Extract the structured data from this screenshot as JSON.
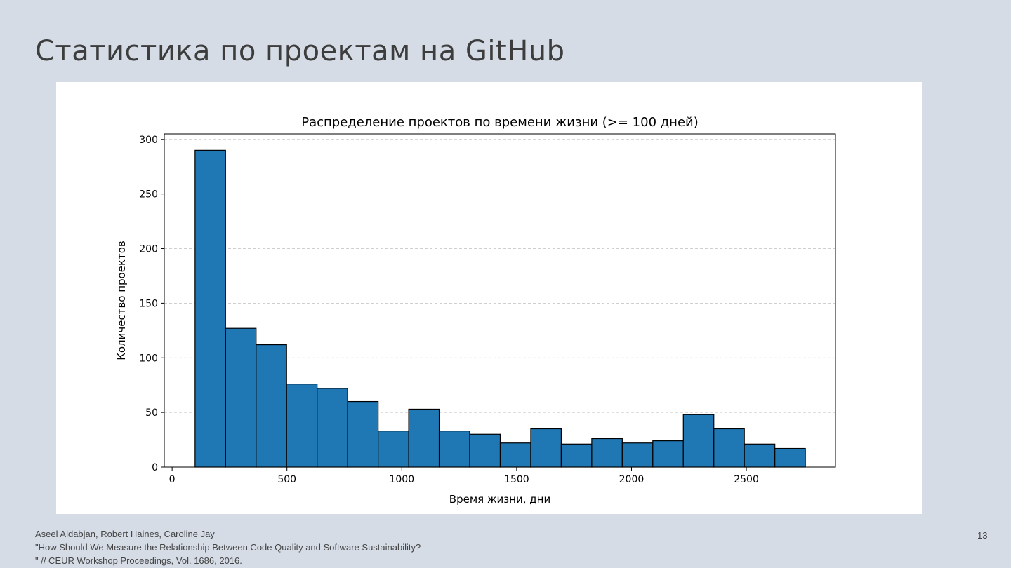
{
  "slide": {
    "title": "Статистика по проектам на GitHub",
    "citation": [
      "Aseel Aldabjan, Robert Haines, Caroline Jay",
      "\"How Should We Measure the Relationship Between Code Quality and Software Sustainability?",
      "\" // CEUR Workshop Proceedings, Vol. 1686, 2016."
    ],
    "page_number": "13"
  },
  "chart_data": {
    "type": "bar",
    "title": "Распределение проектов по времени жизни (>= 100 дней)",
    "xlabel": "Время жизни, дни",
    "ylabel": "Количество проектов",
    "bin_start": 100,
    "bin_end": 2757,
    "values": [
      290,
      127,
      112,
      76,
      72,
      60,
      33,
      53,
      33,
      30,
      22,
      35,
      21,
      26,
      22,
      24,
      48,
      35,
      21,
      17
    ],
    "xlim": [
      -34,
      2888
    ],
    "ylim": [
      0,
      305
    ],
    "xticks": [
      0,
      500,
      1000,
      1500,
      2000,
      2500
    ],
    "yticks": [
      0,
      50,
      100,
      150,
      200,
      250,
      300
    ],
    "grid": "y-dashed",
    "bar_color": "#1f77b4",
    "edge_color": "#000000"
  }
}
